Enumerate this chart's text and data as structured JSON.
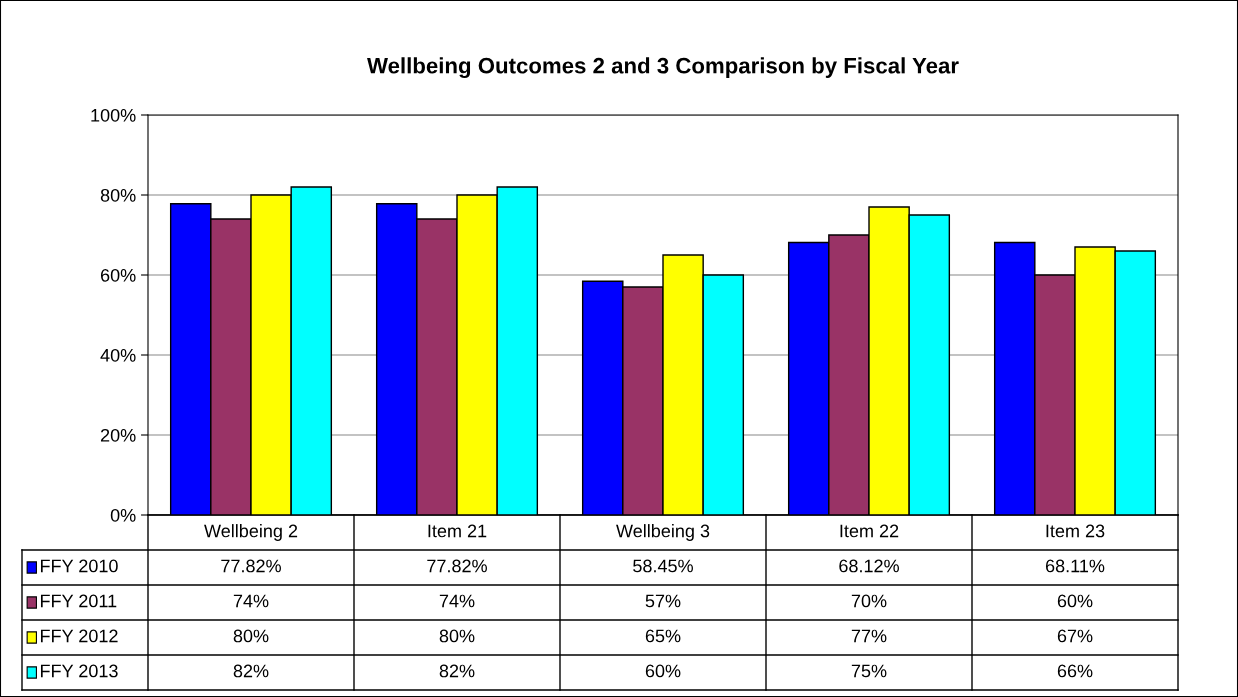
{
  "chart_data": {
    "type": "bar",
    "title": "Wellbeing Outcomes 2 and 3 Comparison by Fiscal Year",
    "categories": [
      "Wellbeing 2",
      "Item 21",
      "Wellbeing 3",
      "Item 22",
      "Item 23"
    ],
    "series": [
      {
        "name": "FFY 2010",
        "color": "#0000ff",
        "values": [
          77.82,
          77.82,
          58.45,
          68.12,
          68.11
        ],
        "value_labels": [
          "77.82%",
          "77.82%",
          "58.45%",
          "68.12%",
          "68.11%"
        ]
      },
      {
        "name": "FFY 2011",
        "color": "#993366",
        "values": [
          74,
          74,
          57,
          70,
          60
        ],
        "value_labels": [
          "74%",
          "74%",
          "57%",
          "70%",
          "60%"
        ]
      },
      {
        "name": "FFY 2012",
        "color": "#ffff00",
        "values": [
          80,
          80,
          65,
          77,
          67
        ],
        "value_labels": [
          "80%",
          "80%",
          "65%",
          "77%",
          "67%"
        ]
      },
      {
        "name": "FFY 2013",
        "color": "#00ffff",
        "values": [
          82,
          82,
          60,
          75,
          66
        ],
        "value_labels": [
          "82%",
          "82%",
          "60%",
          "75%",
          "66%"
        ]
      }
    ],
    "ylim": [
      0,
      100
    ],
    "yticks": [
      {
        "value": 0,
        "label": "0%"
      },
      {
        "value": 20,
        "label": "20%"
      },
      {
        "value": 40,
        "label": "40%"
      },
      {
        "value": 60,
        "label": "60%"
      },
      {
        "value": 80,
        "label": "80%"
      },
      {
        "value": 100,
        "label": "100%"
      }
    ],
    "grid": "y",
    "legend": "bottom"
  }
}
